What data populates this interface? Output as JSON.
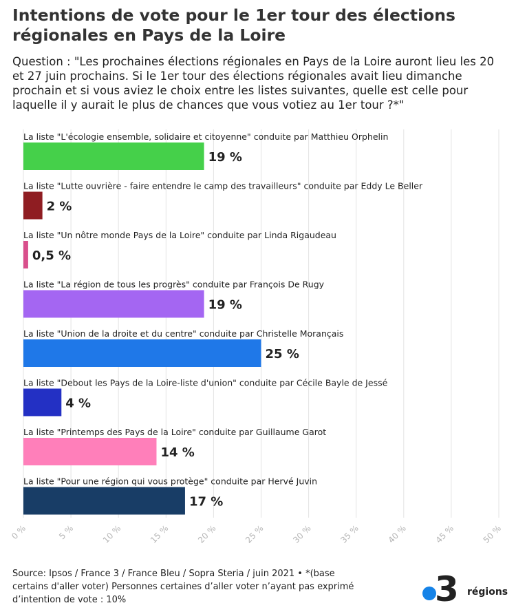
{
  "header": {
    "title": "Intentions de vote pour le 1er tour des élections régionales en Pays de la Loire",
    "subtitle": "Question : \"Les prochaines élections régionales en Pays de la Loire auront lieu les 20 et 27 juin prochains. Si le 1er tour des élections régionales avait lieu dimanche prochain et si vous aviez le choix entre les listes suivantes, quelle est celle pour laquelle il y aurait le plus de chances que vous votiez au 1er tour ?*\""
  },
  "chart_data": {
    "type": "bar",
    "orientation": "horizontal",
    "categories": [
      "La liste \"L'écologie ensemble, solidaire et citoyenne\" conduite par Matthieu Orphelin",
      "La liste \"Lutte ouvrière - faire entendre le camp des travailleurs\" conduite par Eddy Le Beller",
      "La liste \"Un nôtre monde Pays de la Loire\" conduite par Linda Rigaudeau",
      "La liste \"La région de tous les progrès\" conduite par François De Rugy",
      "La liste \"Union de la droite et du centre\" conduite par Christelle Morançais",
      "La liste \"Debout les Pays de la Loire-liste d'union\" conduite par Cécile Bayle de Jessé",
      "La liste \"Printemps des Pays de la Loire\" conduite par Guillaume Garot",
      "La liste \"Pour une région qui vous protège\" conduite par Hervé Juvin"
    ],
    "values": [
      19,
      2,
      0.5,
      19,
      25,
      4,
      14,
      17
    ],
    "data_labels": [
      "19 %",
      "2 %",
      "0,5 %",
      "19 %",
      "25 %",
      "4 %",
      "14 %",
      "17 %"
    ],
    "colors": [
      "#45d04a",
      "#8f1d22",
      "#d94f8c",
      "#a466f2",
      "#1f78e8",
      "#2330c4",
      "#ff7fba",
      "#183d66"
    ],
    "xlim": [
      0,
      50
    ],
    "xticks": [
      "0 %",
      "5 %",
      "10 %",
      "15 %",
      "20 %",
      "25 %",
      "30 %",
      "35 %",
      "40 %",
      "45 %",
      "50 %"
    ],
    "grid": true,
    "legend": "none"
  },
  "footer": {
    "source": "Source: Ipsos / France 3 / France Bleu / Sopra Steria / juin 2021 • *(base certains d'aller voter) Personnes certaines d’aller voter n’ayant pas exprimé d’intention de vote : 10%",
    "logo_number": "3",
    "logo_word": "régions",
    "logo_color": "#1583e8"
  }
}
